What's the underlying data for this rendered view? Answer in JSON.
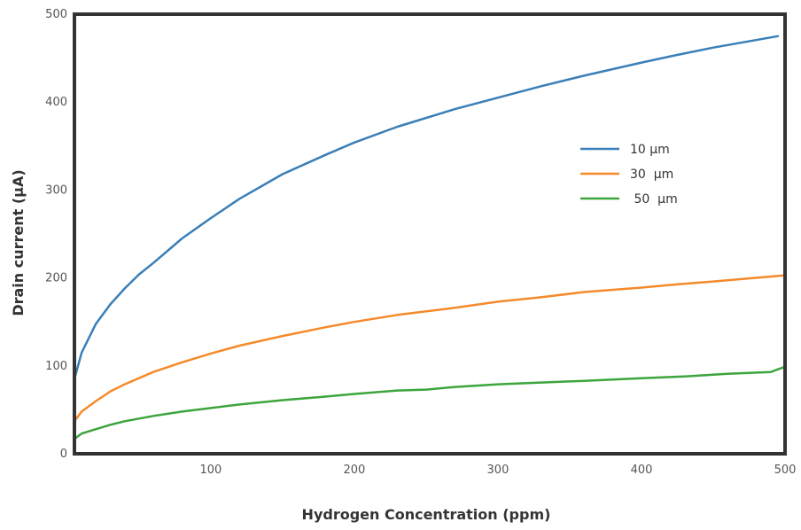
{
  "chart_data": {
    "type": "line",
    "title": "",
    "xlabel": "Hydrogen Concentration  (ppm)",
    "ylabel": "Drain current (µA)",
    "xlim": [
      5,
      500
    ],
    "ylim": [
      0,
      500
    ],
    "xticks": [
      100,
      200,
      300,
      400,
      500
    ],
    "yticks": [
      0,
      100,
      200,
      300,
      400,
      500
    ],
    "grid": false,
    "legend_position": "center-right",
    "series": [
      {
        "name": "10 µm",
        "color": "#3a7fb8",
        "x": [
          5,
          10,
          20,
          30,
          40,
          50,
          60,
          80,
          100,
          120,
          150,
          180,
          200,
          230,
          270,
          300,
          330,
          360,
          400,
          420,
          450,
          495
        ],
        "y": [
          85,
          115,
          148,
          170,
          188,
          204,
          217,
          245,
          268,
          290,
          318,
          340,
          354,
          372,
          392,
          405,
          418,
          430,
          445,
          452,
          462,
          475
        ]
      },
      {
        "name": "30  µm",
        "color": "#f58a2a",
        "x": [
          5,
          10,
          20,
          30,
          40,
          60,
          80,
          100,
          120,
          150,
          180,
          200,
          230,
          270,
          300,
          330,
          360,
          400,
          420,
          450,
          500
        ],
        "y": [
          37,
          48,
          60,
          71,
          79,
          93,
          104,
          114,
          123,
          134,
          144,
          150,
          158,
          166,
          173,
          178,
          184,
          189,
          192,
          196,
          203
        ]
      },
      {
        "name": " 50  µm",
        "color": "#3ca53c",
        "x": [
          5,
          10,
          20,
          30,
          40,
          60,
          80,
          100,
          120,
          150,
          180,
          200,
          230,
          250,
          270,
          300,
          330,
          360,
          400,
          430,
          460,
          490,
          500
        ],
        "y": [
          17,
          23,
          28,
          33,
          37,
          43,
          48,
          52,
          56,
          61,
          65,
          68,
          72,
          73,
          76,
          79,
          81,
          83,
          86,
          88,
          91,
          93,
          99
        ]
      }
    ]
  }
}
